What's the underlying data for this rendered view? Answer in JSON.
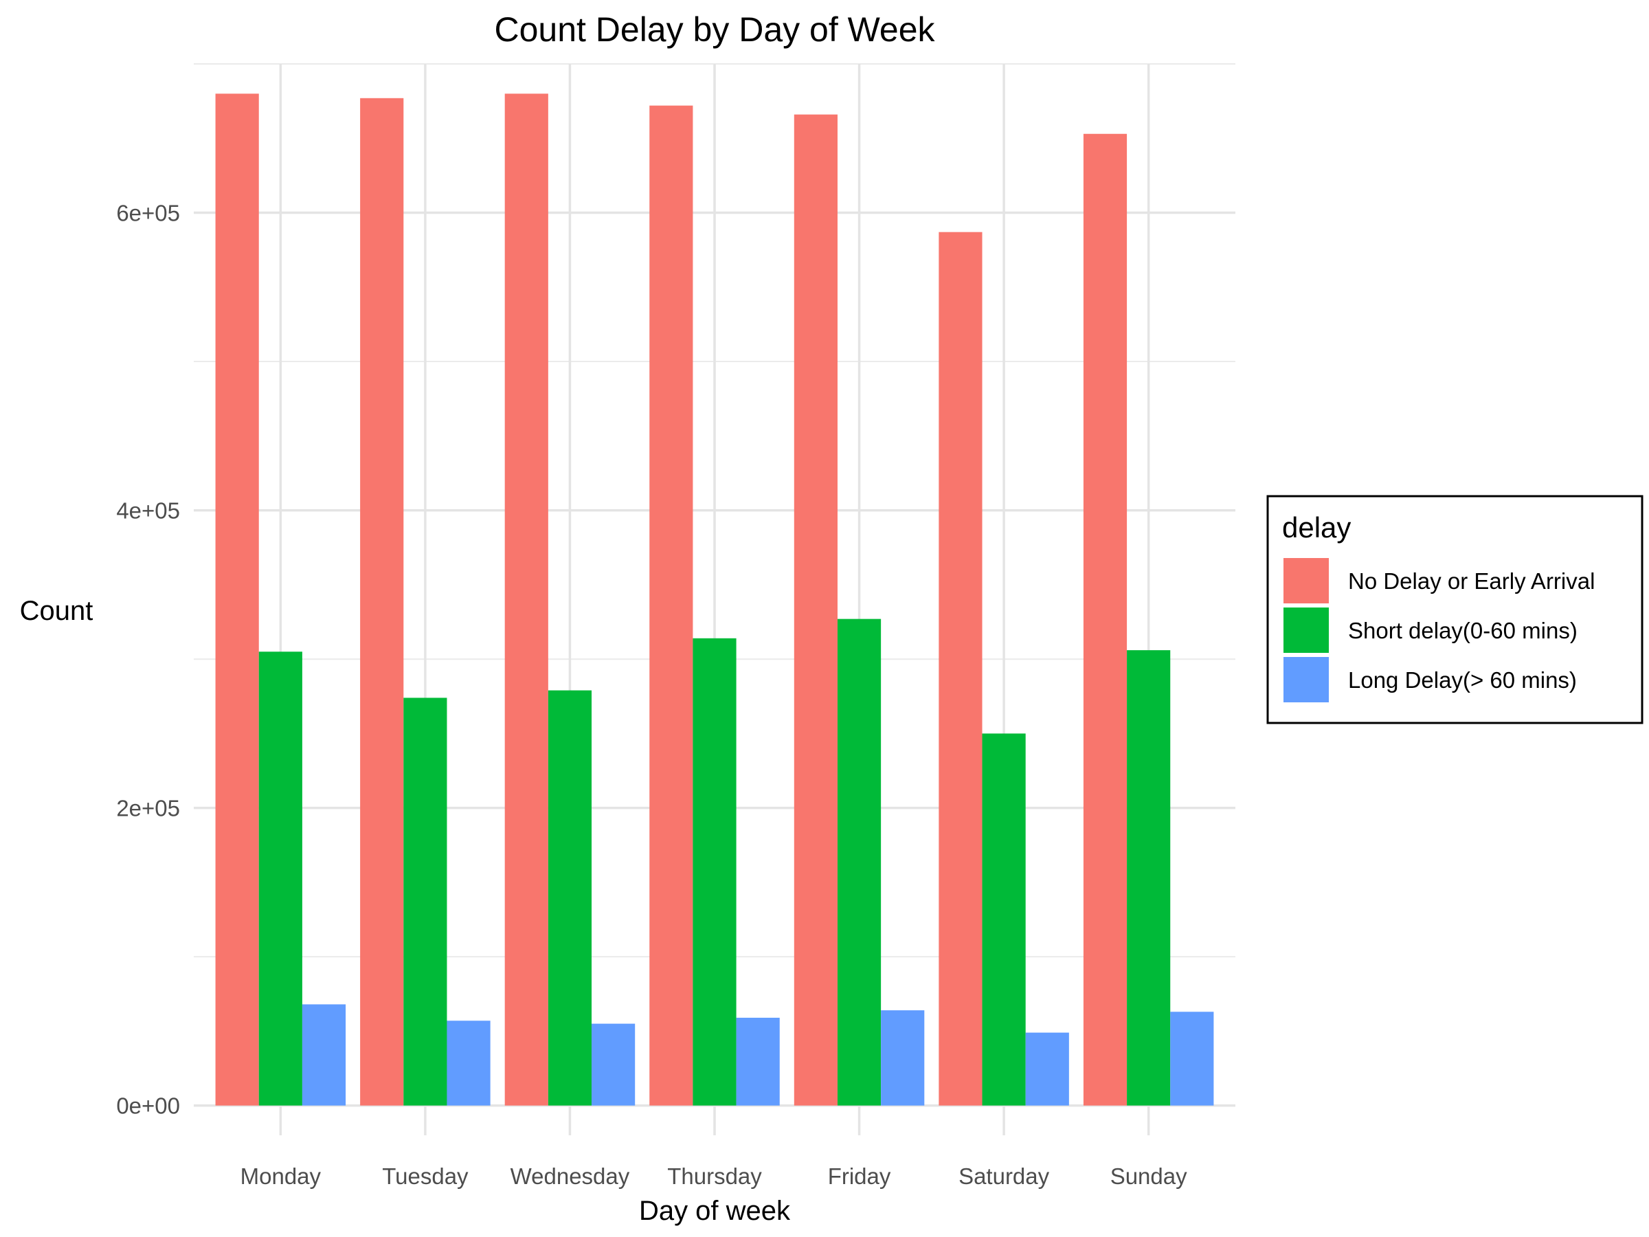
{
  "chart_data": {
    "type": "bar",
    "title": "Count Delay by Day of Week",
    "xlabel": "Day of week",
    "ylabel": "Count",
    "categories": [
      "Monday",
      "Tuesday",
      "Wednesday",
      "Thursday",
      "Friday",
      "Saturday",
      "Sunday"
    ],
    "series": [
      {
        "name": "No Delay or Early Arrival",
        "color": "#F8766D",
        "values": [
          680000,
          677000,
          680000,
          672000,
          666000,
          587000,
          653000
        ]
      },
      {
        "name": "Short delay(0-60 mins)",
        "color": "#00BA38",
        "values": [
          305000,
          274000,
          279000,
          314000,
          327000,
          250000,
          306000
        ]
      },
      {
        "name": "Long Delay(> 60 mins)",
        "color": "#619CFF",
        "values": [
          68000,
          57000,
          55000,
          59000,
          64000,
          49000,
          63000
        ]
      }
    ],
    "ylim": [
      -20000,
      700000
    ],
    "y_ticks": [
      0,
      200000,
      400000,
      600000
    ],
    "y_tick_labels": [
      "0e+00",
      "2e+05",
      "4e+05",
      "6e+05"
    ],
    "y_minor_ticks": [
      100000,
      300000,
      500000,
      700000
    ],
    "grid": true,
    "legend": {
      "title": "delay",
      "position": "right"
    }
  }
}
